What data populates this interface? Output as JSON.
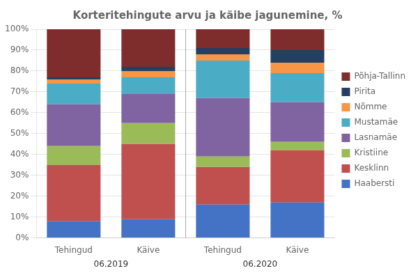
{
  "chart_data": {
    "type": "bar",
    "title": "Korteritehingute arvu ja käibe jagunemine, %",
    "categories": [
      "Tehingud",
      "Käive",
      "Tehingud",
      "Käive"
    ],
    "groups": [
      "06.2019",
      "06.2020"
    ],
    "series": [
      {
        "name": "Haabersti",
        "color": "#4472C4",
        "values": [
          8,
          9,
          16,
          17
        ]
      },
      {
        "name": "Kesklinn",
        "color": "#C0504D",
        "values": [
          27,
          36,
          18,
          25
        ]
      },
      {
        "name": "Kristiine",
        "color": "#9BBB59",
        "values": [
          9,
          10,
          5,
          4
        ]
      },
      {
        "name": "Lasnamäe",
        "color": "#8064A2",
        "values": [
          20,
          14,
          28,
          19
        ]
      },
      {
        "name": "Mustamäe",
        "color": "#4BACC6",
        "values": [
          10,
          8,
          18,
          14
        ]
      },
      {
        "name": "Nõmme",
        "color": "#F79646",
        "values": [
          2,
          3,
          3,
          5
        ]
      },
      {
        "name": "Pirita",
        "color": "#243F60",
        "values": [
          1,
          2,
          3,
          6
        ]
      },
      {
        "name": "Põhja-Tallinn",
        "color": "#7F2C2C",
        "values": [
          23,
          18,
          9,
          10
        ]
      }
    ],
    "stacked": true,
    "ylim": [
      0,
      100
    ],
    "yticks": [
      {
        "value": 0,
        "label": "0%"
      },
      {
        "value": 10,
        "label": "10%"
      },
      {
        "value": 20,
        "label": "20%"
      },
      {
        "value": 30,
        "label": "30%"
      },
      {
        "value": 40,
        "label": "40%"
      },
      {
        "value": 50,
        "label": "50%"
      },
      {
        "value": 60,
        "label": "60%"
      },
      {
        "value": 70,
        "label": "70%"
      },
      {
        "value": 80,
        "label": "80%"
      },
      {
        "value": 90,
        "label": "90%"
      },
      {
        "value": 100,
        "label": "100%"
      }
    ],
    "grid": true,
    "legend": "right"
  }
}
